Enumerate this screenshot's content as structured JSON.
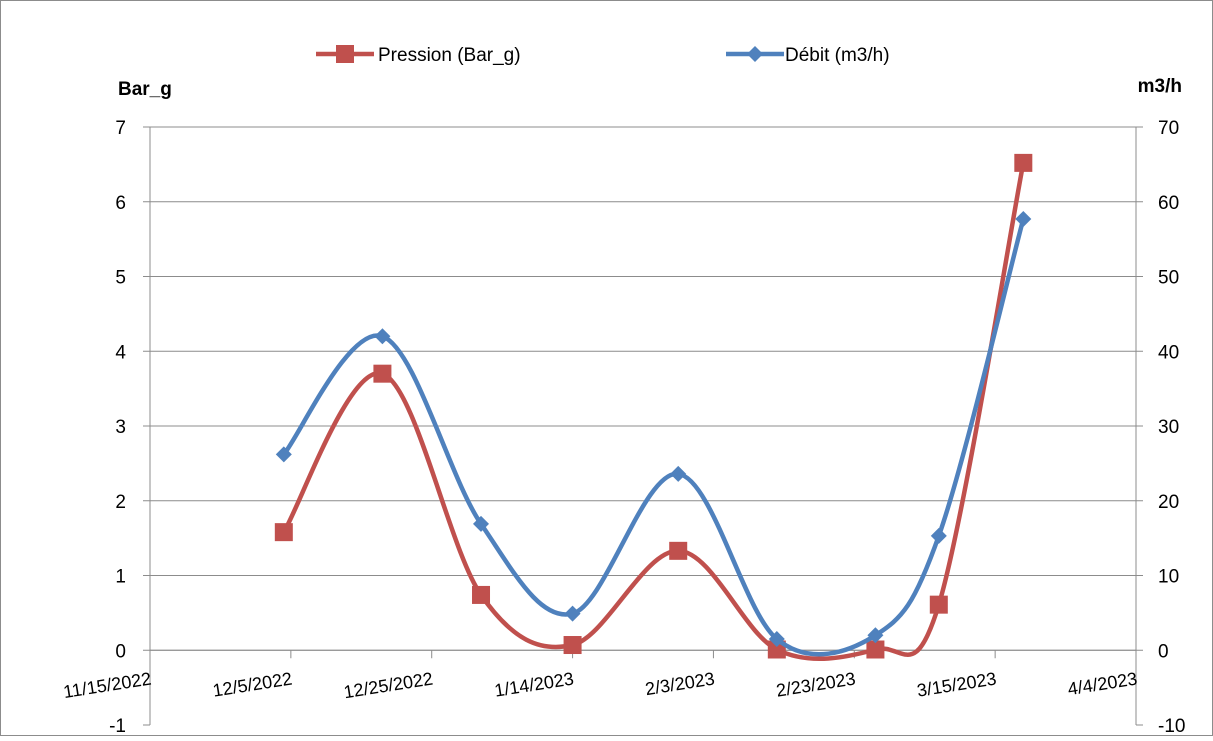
{
  "chart_data": {
    "type": "line",
    "x_type": "date",
    "x_ticks": [
      "11/15/2022",
      "12/5/2022",
      "12/25/2022",
      "1/14/2023",
      "2/3/2023",
      "2/23/2023",
      "3/15/2023",
      "4/4/2023"
    ],
    "xlim": [
      "2022-11-15",
      "2023-04-04"
    ],
    "y_left": {
      "label": "Bar_g",
      "ylim": [
        -1,
        7
      ],
      "ticks": [
        "-1",
        "0",
        "1",
        "2",
        "3",
        "4",
        "5",
        "6",
        "7"
      ]
    },
    "y_right": {
      "label": "m3/h",
      "ylim": [
        -10,
        70
      ],
      "ticks": [
        "-10",
        "0",
        "10",
        "20",
        "30",
        "40",
        "50",
        "60",
        "70"
      ]
    },
    "grid": true,
    "legend_position": "top",
    "series": [
      {
        "name": "Pression (Bar_g)",
        "axis": "left",
        "color": "#C0504D",
        "marker": "square",
        "smooth": true,
        "x": [
          "2022-12-04",
          "2022-12-18",
          "2023-01-01",
          "2023-01-14",
          "2023-01-29",
          "2023-02-12",
          "2023-02-26",
          "2023-03-07",
          "2023-03-19"
        ],
        "values": [
          1.58,
          3.7,
          0.74,
          0.07,
          1.33,
          0.01,
          0.01,
          0.61,
          6.52
        ]
      },
      {
        "name": "Débit (m3/h)",
        "axis": "right",
        "color": "#4F81BD",
        "marker": "diamond",
        "smooth": true,
        "x": [
          "2022-12-04",
          "2022-12-18",
          "2023-01-01",
          "2023-01-14",
          "2023-01-29",
          "2023-02-12",
          "2023-02-26",
          "2023-03-07",
          "2023-03-19"
        ],
        "values": [
          26.2,
          42.0,
          16.9,
          4.9,
          23.6,
          1.5,
          2.0,
          15.3,
          57.7
        ]
      }
    ]
  }
}
